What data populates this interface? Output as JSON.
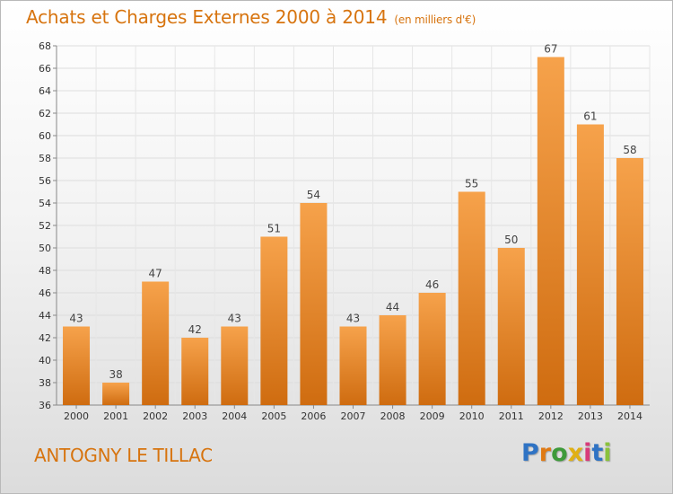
{
  "header": {
    "title": "Achats et Charges Externes 2000 à 2014",
    "subtitle": "(en milliers d'€)"
  },
  "footer": {
    "commune": "ANTOGNY LE TILLAC",
    "logo": [
      "P",
      "r",
      "o",
      "x",
      "i",
      "t",
      "i"
    ]
  },
  "colors": {
    "accent": "#d7740f",
    "bar_top": "#f6a24b",
    "bar_bottom": "#cf6c10",
    "logo": [
      "#2f73c4",
      "#e07a14",
      "#3e9a3a",
      "#e0b014",
      "#d83a7a",
      "#2f73c4",
      "#8ac23c"
    ]
  },
  "chart_data": {
    "type": "bar",
    "categories": [
      "2000",
      "2001",
      "2002",
      "2003",
      "2004",
      "2005",
      "2006",
      "2007",
      "2008",
      "2009",
      "2010",
      "2011",
      "2012",
      "2013",
      "2014"
    ],
    "values": [
      43,
      38,
      47,
      42,
      43,
      51,
      54,
      43,
      44,
      46,
      55,
      50,
      67,
      61,
      58
    ],
    "ylim": [
      36,
      68
    ],
    "yticks": [
      36,
      38,
      40,
      42,
      44,
      46,
      48,
      50,
      52,
      54,
      56,
      58,
      60,
      62,
      64,
      66,
      68
    ],
    "grid": true,
    "data_labels": true
  }
}
